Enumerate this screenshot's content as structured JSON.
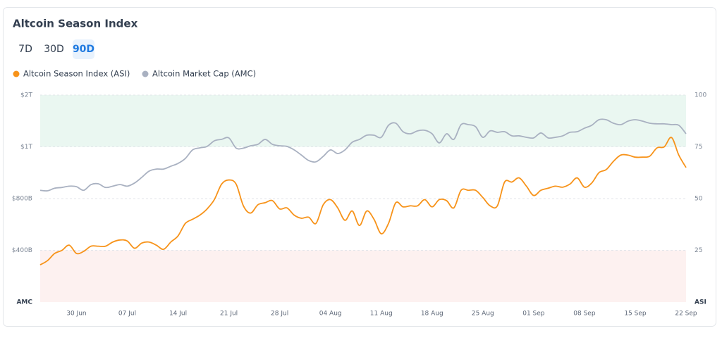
{
  "header": {
    "title": "Altcoin Season Index"
  },
  "range_buttons": [
    "7D",
    "30D",
    "90D"
  ],
  "active_range": 2,
  "chart_data": {
    "type": "line",
    "categories": [
      null,
      null,
      null,
      null,
      null,
      "30 Jun",
      null,
      null,
      null,
      null,
      null,
      null,
      "07 Jul",
      null,
      null,
      null,
      null,
      null,
      null,
      "14 Jul",
      null,
      null,
      null,
      null,
      null,
      null,
      "21 Jul",
      null,
      null,
      null,
      null,
      null,
      null,
      "28 Jul",
      null,
      null,
      null,
      null,
      null,
      null,
      "04 Aug",
      null,
      null,
      null,
      null,
      null,
      null,
      "11 Aug",
      null,
      null,
      null,
      null,
      null,
      null,
      "18 Aug",
      null,
      null,
      null,
      null,
      null,
      null,
      "25 Aug",
      null,
      null,
      null,
      null,
      null,
      null,
      "01 Sep",
      null,
      null,
      null,
      null,
      null,
      null,
      "08 Sep",
      null,
      null,
      null,
      null,
      null,
      null,
      "15 Sep",
      null,
      null,
      null,
      null,
      null,
      null,
      "22 Sep"
    ],
    "series": [
      {
        "name": "Altcoin Season Index (ASI)",
        "color": "#f7931a",
        "axis": "y",
        "values": [
          18,
          20,
          23.5,
          25,
          27.5,
          23.5,
          24.5,
          27,
          27,
          27,
          29,
          30,
          29.5,
          26,
          28.5,
          29,
          27.5,
          25.5,
          29,
          32,
          38,
          40,
          42,
          45,
          49.5,
          57,
          59,
          57,
          46.5,
          43,
          47,
          48,
          49,
          45,
          45.5,
          42,
          40.5,
          41,
          38,
          47,
          49.5,
          45.5,
          39.5,
          44,
          37,
          44,
          40,
          33,
          38,
          48,
          46,
          46.5,
          46.5,
          49.5,
          46,
          49.5,
          49,
          45.5,
          54,
          54,
          54,
          50.5,
          46.5,
          46.5,
          58,
          58,
          60,
          56,
          51.5,
          54,
          55,
          56,
          55.5,
          57,
          60,
          55.5,
          57.5,
          62.5,
          64,
          68,
          71,
          71,
          70,
          70,
          70.5,
          74.5,
          75,
          79.5,
          71,
          65
        ]
      },
      {
        "name": "Altcoin Market Cap (AMC)",
        "color": "#a9b1c1",
        "axis": "y2",
        "values": [
          832,
          830,
          840,
          843,
          848,
          846,
          832,
          854,
          857,
          843,
          848,
          854,
          848,
          860,
          882,
          906,
          914,
          914,
          925,
          936,
          955,
          988,
          996,
          1008,
          1116,
          1144,
          1172,
          995,
          995,
          1020,
          1048,
          1144,
          1048,
          1020,
          1008,
          988,
          968,
          947,
          942,
          963,
          988,
          974,
          988,
          1088,
          1144,
          1224,
          1224,
          1184,
          1416,
          1456,
          1292,
          1252,
          1308,
          1320,
          1252,
          1076,
          1252,
          1144,
          1428,
          1428,
          1388,
          1184,
          1308,
          1280,
          1292,
          1212,
          1212,
          1184,
          1172,
          1268,
          1172,
          1184,
          1212,
          1280,
          1292,
          1360,
          1416,
          1524,
          1524,
          1456,
          1428,
          1496,
          1524,
          1496,
          1456,
          1444,
          1444,
          1428,
          1416,
          1252
        ]
      }
    ],
    "ylim": [
      0,
      100
    ],
    "yticks": [
      25,
      50,
      75,
      100
    ],
    "ylabel": "ASI",
    "y2lim": [
      0,
      2000
    ],
    "y2ticks": [
      {
        "value": 400,
        "label": "$400B"
      },
      {
        "value": 800,
        "label": "$800B"
      },
      {
        "value": 1000,
        "label": "$1T"
      },
      {
        "value": 2000,
        "label": "$2T"
      }
    ],
    "y2label": "AMC",
    "grid": true,
    "zones": [
      {
        "from": 75,
        "to": 100,
        "color": "#eaf7f1"
      },
      {
        "from": 0,
        "to": 25,
        "color": "#fdf1f0"
      }
    ]
  }
}
